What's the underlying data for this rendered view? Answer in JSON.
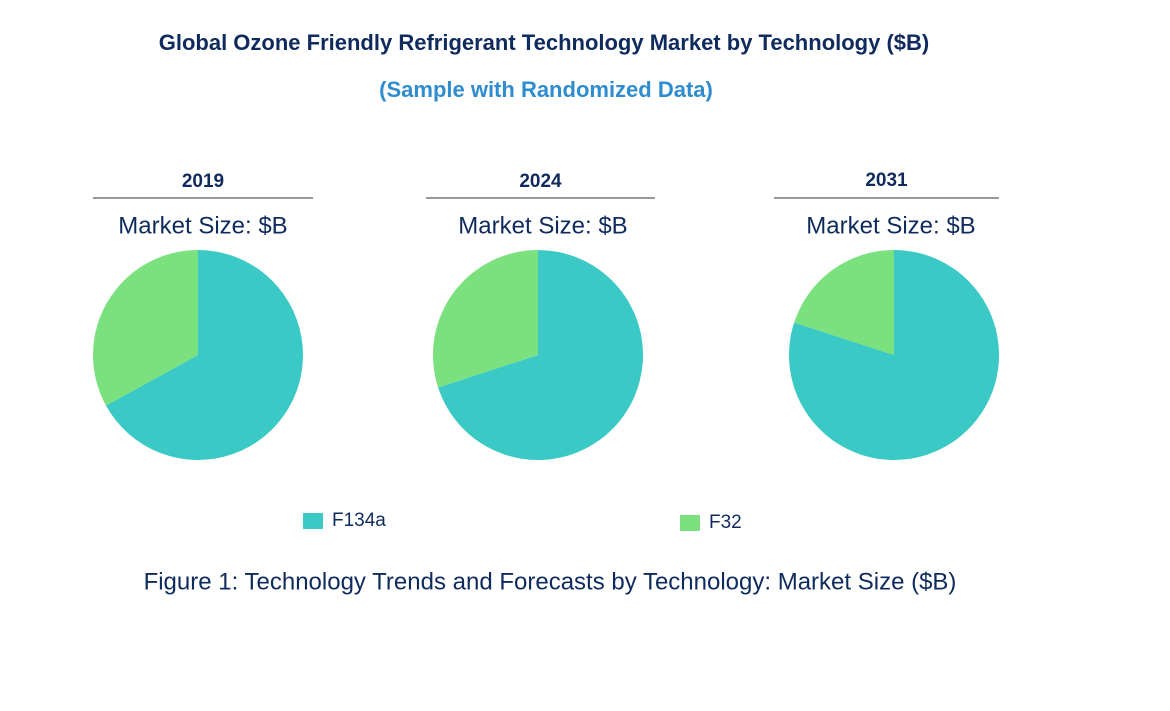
{
  "title": "Global Ozone Friendly Refrigerant  Technology Market by Technology ($B)",
  "subtitle": "(Sample with Randomized Data)",
  "caption": "Figure 1: Technology Trends and Forecasts by Technology: Market Size ($B)",
  "chart_data": [
    {
      "type": "pie",
      "title": "2019",
      "subtitle": "Market Size: $B",
      "categories": [
        "F134a",
        "F32"
      ],
      "values": [
        67,
        33
      ],
      "colors": [
        "#3ac9c4",
        "#7be07e"
      ]
    },
    {
      "type": "pie",
      "title": "2024",
      "subtitle": "Market Size: $B",
      "categories": [
        "F134a",
        "F32"
      ],
      "values": [
        70,
        30
      ],
      "colors": [
        "#3ac9c4",
        "#7be07e"
      ]
    },
    {
      "type": "pie",
      "title": "2031",
      "subtitle": "Market Size: $B",
      "categories": [
        "F134a",
        "F32"
      ],
      "values": [
        80,
        20
      ],
      "colors": [
        "#3ac9c4",
        "#7be07e"
      ]
    }
  ]
}
